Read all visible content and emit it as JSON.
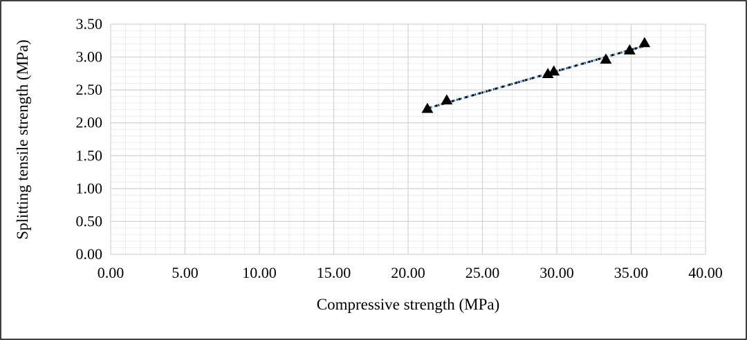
{
  "chart_data": {
    "type": "scatter",
    "title": "",
    "xlabel": "Compressive strength (MPa)",
    "ylabel": "Splitting tensile strength (MPa)",
    "xlim": [
      0,
      40
    ],
    "ylim": [
      0,
      3.5
    ],
    "x_ticks": [
      "0.00",
      "5.00",
      "10.00",
      "15.00",
      "20.00",
      "25.00",
      "30.00",
      "35.00",
      "40.00"
    ],
    "y_ticks": [
      "0.00",
      "0.50",
      "1.00",
      "1.50",
      "2.00",
      "2.50",
      "3.00",
      "3.50"
    ],
    "grid": true,
    "legend": "none",
    "marker": "triangle",
    "marker_color": "#000000",
    "series": [
      {
        "points": [
          {
            "x": 21.3,
            "y": 2.21
          },
          {
            "x": 22.6,
            "y": 2.34
          },
          {
            "x": 29.4,
            "y": 2.74
          },
          {
            "x": 29.8,
            "y": 2.78
          },
          {
            "x": 33.3,
            "y": 2.96
          },
          {
            "x": 34.9,
            "y": 3.1
          },
          {
            "x": 35.9,
            "y": 3.21
          }
        ]
      }
    ],
    "trendlines": [
      {
        "style": "dashed",
        "color": "#000000",
        "x": [
          21.3,
          35.9
        ],
        "y": [
          2.22,
          3.17
        ]
      },
      {
        "style": "dotted",
        "color": "#5B9BD5",
        "x": [
          21.3,
          35.9
        ],
        "y": [
          2.22,
          3.17
        ]
      }
    ]
  }
}
